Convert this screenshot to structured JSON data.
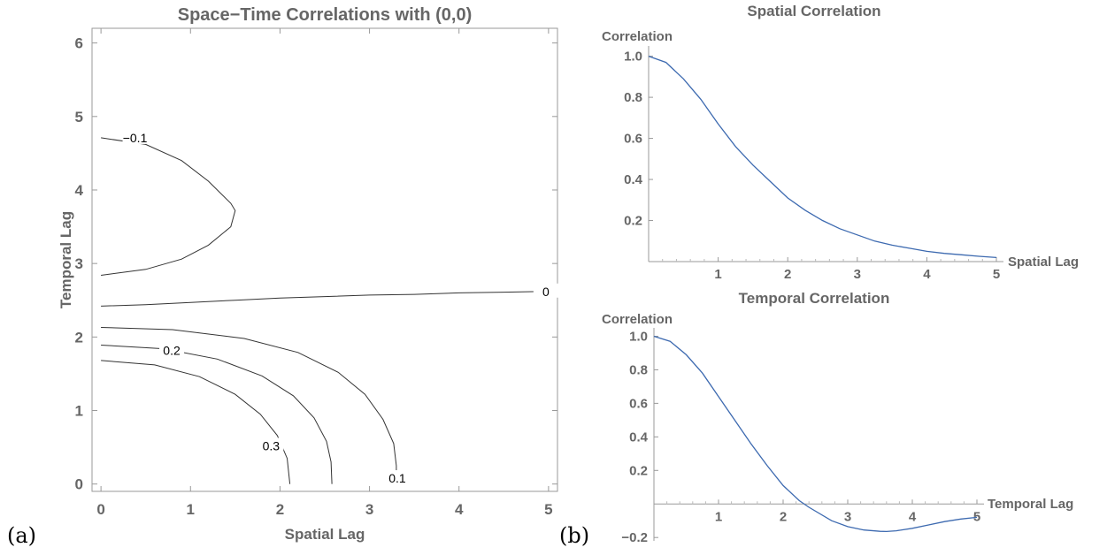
{
  "panel_labels": {
    "a": "(a)",
    "b": "(b)"
  },
  "chart_data": [
    {
      "type": "contour",
      "title": "Space−Time Correlations with (0,0)",
      "xlabel": "Spatial Lag",
      "ylabel": "Temporal Lag",
      "xlim": [
        -0.1,
        5.1
      ],
      "ylim": [
        -0.1,
        6.2
      ],
      "xticks": [
        "0",
        "1",
        "2",
        "3",
        "4",
        "5"
      ],
      "yticks": [
        "0",
        "1",
        "2",
        "3",
        "4",
        "5",
        "6"
      ],
      "frame": true,
      "grid": false,
      "contours": [
        {
          "level": "−0.1",
          "label_at": [
            0.38,
            4.71
          ],
          "points": [
            [
              0,
              4.71
            ],
            [
              0.5,
              4.62
            ],
            [
              0.9,
              4.4
            ],
            [
              1.2,
              4.12
            ],
            [
              1.45,
              3.82
            ],
            [
              1.5,
              3.72
            ],
            [
              1.45,
              3.5
            ],
            [
              1.2,
              3.25
            ],
            [
              0.9,
              3.06
            ],
            [
              0.5,
              2.92
            ],
            [
              0,
              2.84
            ]
          ]
        },
        {
          "level": "0",
          "label_at": [
            4.97,
            2.62
          ],
          "points": [
            [
              0,
              2.42
            ],
            [
              0.5,
              2.44
            ],
            [
              1.0,
              2.47
            ],
            [
              1.5,
              2.5
            ],
            [
              2.0,
              2.53
            ],
            [
              2.5,
              2.55
            ],
            [
              3.0,
              2.57
            ],
            [
              3.5,
              2.58
            ],
            [
              4.0,
              2.6
            ],
            [
              4.5,
              2.61
            ],
            [
              4.95,
              2.62
            ]
          ]
        },
        {
          "level": "0.1",
          "label_at": [
            3.31,
            0.08
          ],
          "points": [
            [
              0,
              2.13
            ],
            [
              0.8,
              2.1
            ],
            [
              1.6,
              1.98
            ],
            [
              2.2,
              1.79
            ],
            [
              2.65,
              1.52
            ],
            [
              2.95,
              1.22
            ],
            [
              3.15,
              0.88
            ],
            [
              3.27,
              0.55
            ],
            [
              3.3,
              0.25
            ],
            [
              3.3,
              0.08
            ]
          ]
        },
        {
          "level": "0.2",
          "label_at": [
            0.79,
            1.82
          ],
          "points": [
            [
              0,
              1.89
            ],
            [
              0.7,
              1.84
            ],
            [
              1.3,
              1.7
            ],
            [
              1.8,
              1.47
            ],
            [
              2.15,
              1.2
            ],
            [
              2.38,
              0.9
            ],
            [
              2.52,
              0.58
            ],
            [
              2.57,
              0.3
            ],
            [
              2.58,
              0
            ]
          ]
        },
        {
          "level": "0.3",
          "label_at": [
            1.9,
            0.52
          ],
          "points": [
            [
              0,
              1.68
            ],
            [
              0.6,
              1.62
            ],
            [
              1.1,
              1.46
            ],
            [
              1.5,
              1.22
            ],
            [
              1.78,
              0.95
            ],
            [
              1.97,
              0.66
            ],
            [
              2.08,
              0.35
            ],
            [
              2.11,
              0
            ]
          ]
        }
      ]
    },
    {
      "type": "line",
      "title": "Spatial Correlation",
      "xlabel": "Spatial Lag",
      "ylabel": "Correlation",
      "xlim": [
        0,
        5
      ],
      "ylim": [
        0,
        1.05
      ],
      "xticks": [
        "1",
        "2",
        "3",
        "4",
        "5"
      ],
      "yticks": [
        "0.2",
        "0.4",
        "0.6",
        "0.8",
        "1.0"
      ],
      "series": [
        {
          "color": "#3d6ab0",
          "x": [
            0,
            0.25,
            0.5,
            0.75,
            1,
            1.25,
            1.5,
            1.75,
            2,
            2.25,
            2.5,
            2.75,
            3,
            3.25,
            3.5,
            3.75,
            4,
            4.25,
            4.5,
            4.75,
            5
          ],
          "y": [
            1.0,
            0.97,
            0.89,
            0.79,
            0.67,
            0.56,
            0.47,
            0.39,
            0.31,
            0.25,
            0.2,
            0.16,
            0.13,
            0.1,
            0.08,
            0.065,
            0.05,
            0.04,
            0.033,
            0.026,
            0.02
          ]
        }
      ]
    },
    {
      "type": "line",
      "title": "Temporal Correlation",
      "xlabel": "Temporal Lag",
      "ylabel": "Correlation",
      "xlim": [
        0,
        5
      ],
      "ylim": [
        -0.22,
        1.05
      ],
      "xticks": [
        "1",
        "2",
        "3",
        "4",
        "5"
      ],
      "yticks": [
        "−0.2",
        "0.2",
        "0.4",
        "0.6",
        "0.8",
        "1.0"
      ],
      "series": [
        {
          "color": "#3d6ab0",
          "x": [
            0,
            0.25,
            0.5,
            0.75,
            1,
            1.25,
            1.5,
            1.75,
            2,
            2.25,
            2.4,
            2.75,
            3,
            3.25,
            3.5,
            3.6,
            3.75,
            4,
            4.25,
            4.5,
            4.75,
            5
          ],
          "y": [
            1.0,
            0.97,
            0.89,
            0.78,
            0.64,
            0.5,
            0.36,
            0.23,
            0.11,
            0.02,
            -0.02,
            -0.1,
            -0.135,
            -0.155,
            -0.163,
            -0.164,
            -0.16,
            -0.145,
            -0.125,
            -0.105,
            -0.09,
            -0.08
          ]
        }
      ]
    }
  ]
}
